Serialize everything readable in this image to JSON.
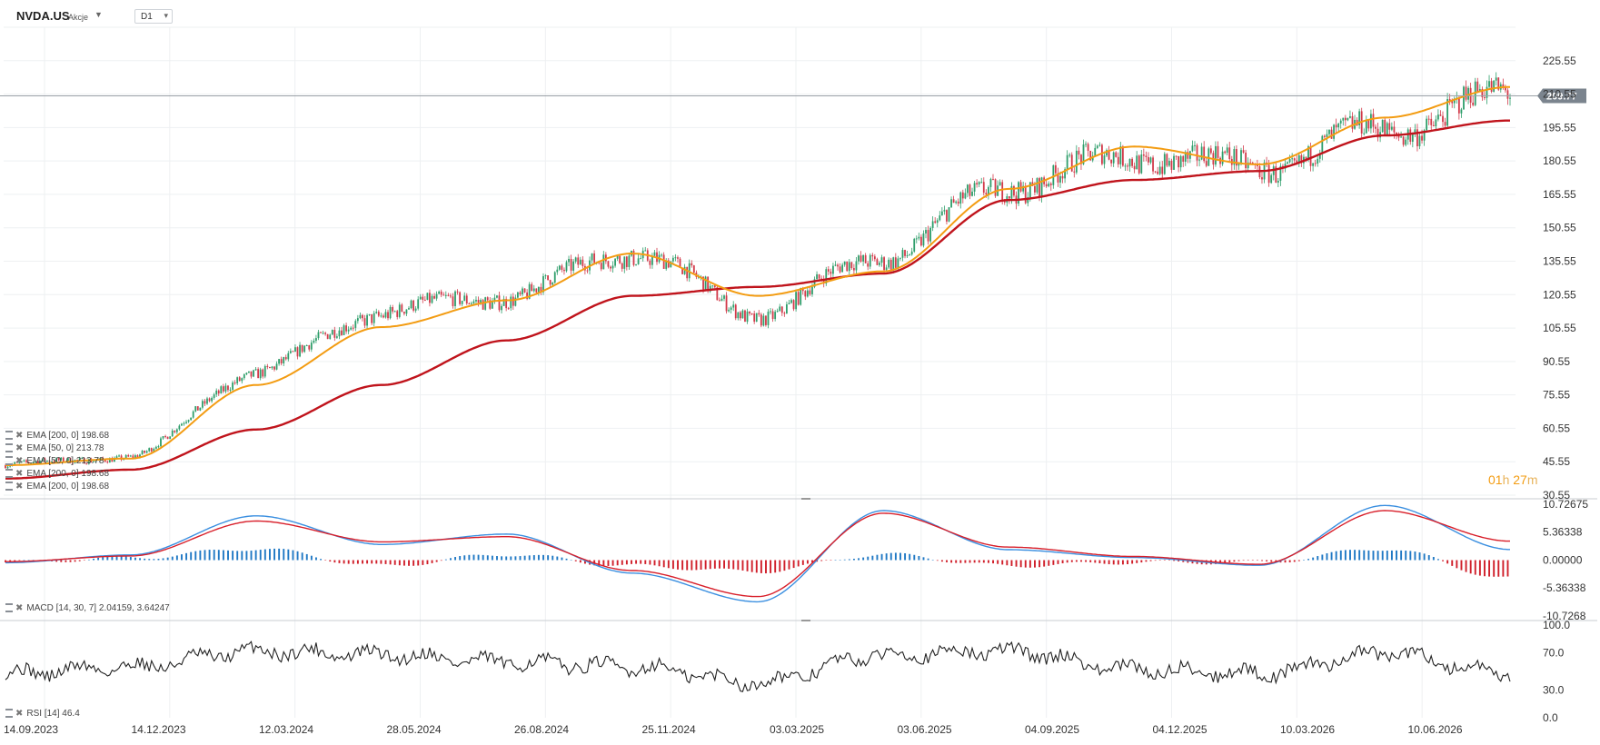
{
  "header": {
    "symbol": "NVDA.US",
    "instrument_type": "Akcje",
    "timeframe": "D1"
  },
  "countdown": {
    "hours": "01",
    "hours_unit": "h",
    "minutes": "27",
    "minutes_unit": "m"
  },
  "price_panel": {
    "current_price": 209.77,
    "current_price_label": "209.77",
    "y_ticks": [
      "225.55",
      "210.55",
      "195.55",
      "180.55",
      "165.55",
      "150.55",
      "135.55",
      "120.55",
      "105.55",
      "90.55",
      "75.55",
      "60.55",
      "45.55",
      "30.55"
    ],
    "y_min": 30.55,
    "y_max": 240.55,
    "legend": [
      "EMA [200, 0] 198.68",
      "EMA [50, 0] 213.78",
      "EMA [50, 0] 213.78",
      "EMA [200, 0] 198.68",
      "EMA [200, 0] 198.68"
    ]
  },
  "macd_panel": {
    "label": "MACD [14, 30, 7] 2.04159, 3.64247",
    "y_ticks": [
      "10.72675",
      "5.36338",
      "0.00000",
      "-5.36338",
      "-10.7268"
    ],
    "y_min": -10.7268,
    "y_max": 10.72675
  },
  "rsi_panel": {
    "label": "RSI [14] 46.4",
    "y_ticks": [
      "100.0",
      "70.0",
      "30.0",
      "0.0"
    ],
    "y_min": 0,
    "y_max": 100
  },
  "x_axis": {
    "labels": [
      "14.09.2023",
      "14.12.2023",
      "12.03.2024",
      "28.05.2024",
      "26.08.2024",
      "25.11.2024",
      "03.03.2025",
      "03.06.2025",
      "04.09.2025",
      "04.12.2025",
      "10.03.2026",
      "10.06.2026"
    ]
  },
  "colors": {
    "up": "#2e9e6b",
    "down": "#d23a4a",
    "ema50": "#f39c12",
    "ema200": "#c0141c",
    "macd_pos": "#1f78c4",
    "macd_neg": "#d01f2a",
    "macd_line": "#3a8fe0",
    "signal_line": "#d81f2a",
    "rsi_line": "#222222",
    "price_line": "#9aa0a6",
    "price_badge": "#7b848e",
    "grid": "#eef0f2"
  },
  "chart_data": {
    "type": "candlestick",
    "x": [
      "2023-09-14",
      "2023-12-14",
      "2024-03-12",
      "2024-05-28",
      "2024-08-26",
      "2024-11-25",
      "2025-03-03",
      "2025-06-03",
      "2025-09-04",
      "2025-12-04",
      "2026-03-10",
      "2026-06-10",
      "2026-08-20"
    ],
    "close": [
      44,
      48,
      86,
      113,
      120,
      140,
      112,
      138,
      170,
      183,
      178,
      195,
      209.77
    ],
    "ema50": [
      44,
      47,
      80,
      106,
      118,
      139,
      120,
      131,
      168,
      187,
      179,
      200,
      213.78
    ],
    "ema200": [
      38,
      42,
      60,
      80,
      100,
      120,
      124,
      130,
      163,
      172,
      176,
      192,
      198.68
    ],
    "macd": [
      -0.5,
      1.0,
      8.5,
      3.0,
      5.0,
      -2.5,
      -8.0,
      9.5,
      2.0,
      0.5,
      -1.0,
      10.5,
      2.04
    ],
    "signal": [
      -0.3,
      0.8,
      7.5,
      3.5,
      4.5,
      -2.0,
      -7.0,
      9.0,
      2.5,
      0.7,
      -0.8,
      9.5,
      3.64
    ],
    "rsi": [
      48,
      55,
      72,
      68,
      60,
      55,
      38,
      68,
      72,
      52,
      48,
      70,
      46.4
    ],
    "grid": true
  }
}
